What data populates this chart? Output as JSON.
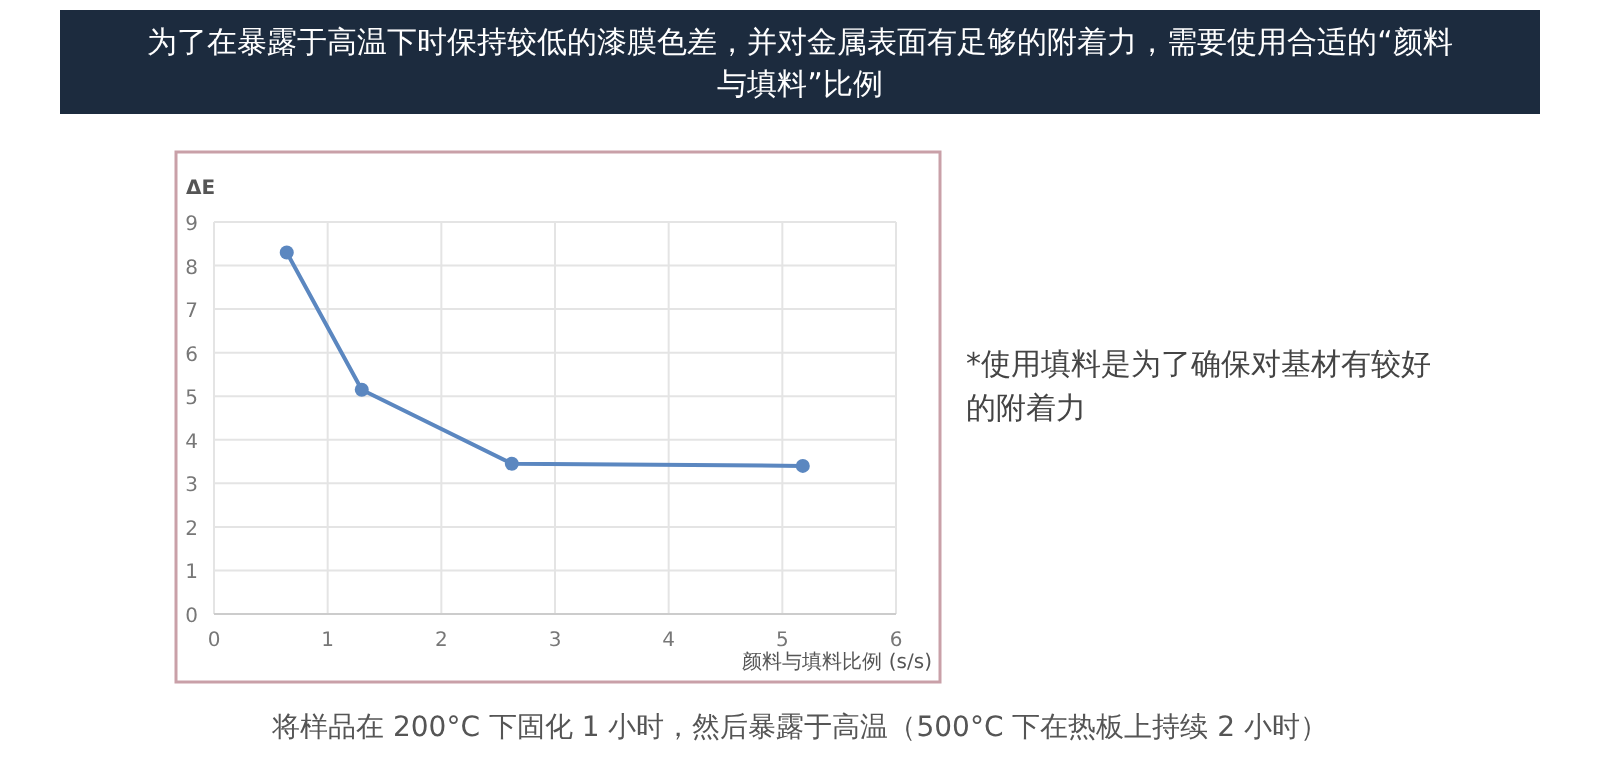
{
  "chart_data": {
    "type": "line",
    "title": "为了在暴露于高温下时保持较低的漆膜色差，并对金属表面有足够的附着力，需要使用合适的“颜料与填料”比例",
    "xlabel": "颜料与填料比例 (s/s)",
    "ylabel": "ΔE",
    "x": [
      0.64,
      1.3,
      2.62,
      5.18
    ],
    "series": [
      {
        "color": "#5b87c0",
        "values": [
          8.3,
          5.15,
          3.45,
          3.4
        ]
      }
    ],
    "xlim": [
      0,
      6
    ],
    "xticks": [
      0,
      1,
      2,
      3,
      4,
      5,
      6
    ],
    "ylim": [
      0,
      9
    ],
    "yticks": [
      0,
      1,
      2,
      3,
      4,
      5,
      6,
      7,
      8,
      9
    ],
    "grid": true,
    "marker": "circle",
    "line_style": "solid",
    "annotations": [
      "*使用填料是为了确保对基材有较好的附着力",
      "将样品在 200°C 下固化 1 小时，然后暴露于高温（500°C 下在热板上持续 2 小时）"
    ]
  }
}
